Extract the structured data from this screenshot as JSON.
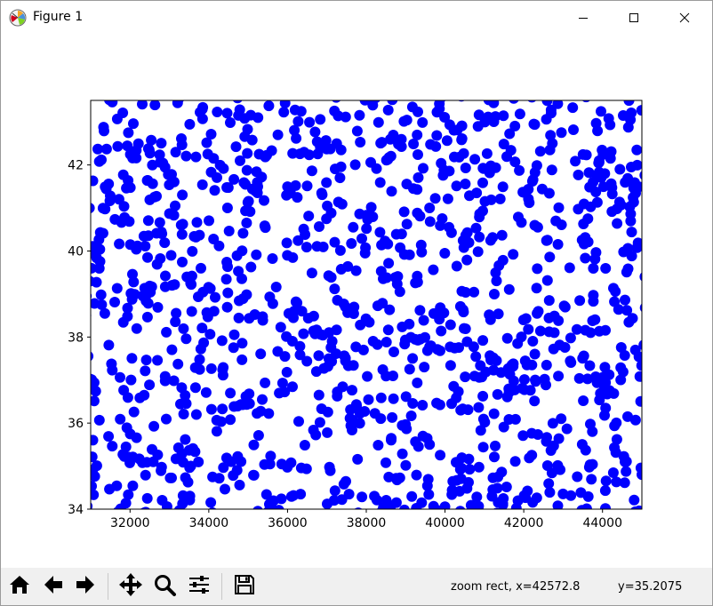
{
  "window": {
    "title": "Figure 1",
    "minimize": "minimize",
    "maximize": "maximize",
    "close": "close"
  },
  "toolbar": {
    "buttons": [
      {
        "name": "home-icon",
        "action": "Home"
      },
      {
        "name": "back-icon",
        "action": "Back"
      },
      {
        "name": "forward-icon",
        "action": "Forward"
      },
      {
        "name": "pan-icon",
        "action": "Pan"
      },
      {
        "name": "zoom-icon",
        "action": "Zoom"
      },
      {
        "name": "configure-subplots-icon",
        "action": "Subplots"
      },
      {
        "name": "save-icon",
        "action": "Save"
      }
    ],
    "status_mode": "zoom rect, x=42572.8",
    "status_y": "y=35.2075"
  },
  "colors": {
    "marker": "#0000ff",
    "toolbar_bg": "#f0f0f0"
  },
  "chart_data": {
    "type": "scatter",
    "title": "",
    "xlabel": "",
    "ylabel": "",
    "xlim": [
      31000,
      45000
    ],
    "ylim": [
      34,
      43.5
    ],
    "xticks": [
      "32000",
      "34000",
      "36000",
      "38000",
      "40000",
      "42000",
      "44000"
    ],
    "yticks": [
      "34",
      "36",
      "38",
      "40",
      "42"
    ],
    "grid": false,
    "legend": "none",
    "series": [
      {
        "marker": "o",
        "color": "#0000ff",
        "point_count": 1200,
        "distribution": "uniform random over xlim x ylim"
      }
    ]
  }
}
